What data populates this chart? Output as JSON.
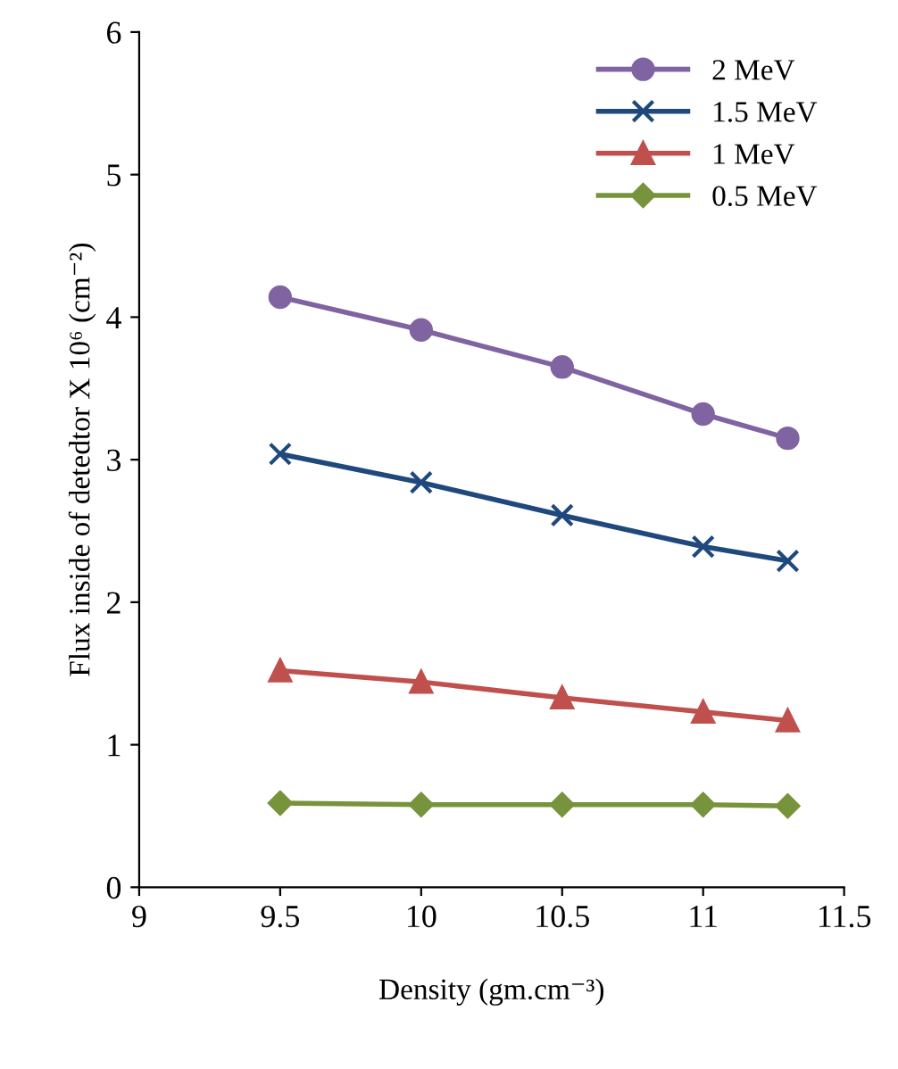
{
  "chart_data": {
    "type": "line",
    "xlabel": "Density (gm.cm⁻³)",
    "ylabel": "Flux inside of detedtor X 10⁶ (cm⁻²)",
    "x": [
      9.5,
      10,
      10.5,
      11,
      11.3
    ],
    "series": [
      {
        "name": "2 MeV",
        "color": "#8064a2",
        "marker": "circle",
        "values": [
          4.14,
          3.91,
          3.65,
          3.32,
          3.15
        ]
      },
      {
        "name": "1.5 MeV",
        "color": "#1f497d",
        "marker": "cross",
        "values": [
          3.04,
          2.84,
          2.61,
          2.39,
          2.29
        ]
      },
      {
        "name": "1 MeV",
        "color": "#c0504d",
        "marker": "triangle",
        "values": [
          1.52,
          1.44,
          1.33,
          1.23,
          1.17
        ]
      },
      {
        "name": "0.5 MeV",
        "color": "#77933c",
        "marker": "diamond",
        "values": [
          0.59,
          0.58,
          0.58,
          0.58,
          0.57
        ]
      }
    ],
    "xlim": [
      9,
      11.5
    ],
    "xticks": [
      9,
      9.5,
      10,
      10.5,
      11,
      11.5
    ],
    "ylim": [
      0,
      6
    ],
    "yticks": [
      0,
      1,
      2,
      3,
      4,
      5,
      6
    ],
    "grid": false,
    "legend": "top right",
    "line_style": "solid"
  }
}
